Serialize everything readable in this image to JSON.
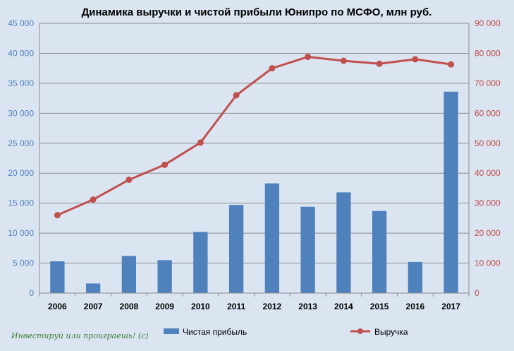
{
  "chart_data": {
    "type": "bar",
    "title": "Динамика выручки  и чистой прибыли Юнипро по МСФО, млн руб.",
    "categories": [
      "2006",
      "2007",
      "2008",
      "2009",
      "2010",
      "2011",
      "2012",
      "2013",
      "2014",
      "2015",
      "2016",
      "2017"
    ],
    "left_axis": {
      "ylim": [
        0,
        45000
      ],
      "ticks": [
        "0",
        "5 000",
        "10 000",
        "15 000",
        "20 000",
        "25 000",
        "30 000",
        "35 000",
        "40 000",
        "45 000"
      ],
      "color": "#4f81bd"
    },
    "right_axis": {
      "ylim": [
        0,
        90000
      ],
      "ticks": [
        "0",
        "10 000",
        "20 000",
        "30 000",
        "40 000",
        "50 000",
        "60 000",
        "70 000",
        "80 000",
        "90 000"
      ],
      "color": "#c0504d"
    },
    "series": [
      {
        "name": "Чистая прибыль",
        "type": "bar",
        "axis": "left",
        "color": "#4f81bd",
        "values": [
          5300,
          1600,
          6200,
          5500,
          10200,
          14700,
          18300,
          14400,
          16800,
          13700,
          5200,
          33600
        ]
      },
      {
        "name": "Выручка",
        "type": "line",
        "axis": "right",
        "color": "#c0504d",
        "values": [
          26000,
          31200,
          37800,
          42800,
          50200,
          66000,
          75000,
          78800,
          77500,
          76500,
          78000,
          76300
        ]
      }
    ],
    "grid": true,
    "legend": "bottom"
  },
  "watermark": "Инвестируй или проиграешь! (с)"
}
